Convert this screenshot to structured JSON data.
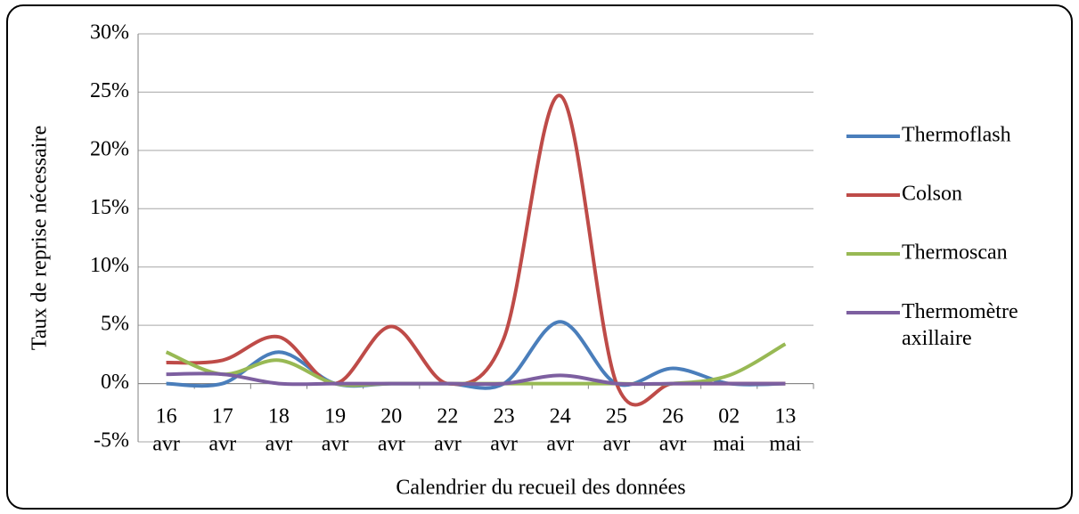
{
  "chart_data": {
    "type": "line",
    "x_label": "Calendrier du recueil des données",
    "y_label": "Taux de reprise nécessaire",
    "categories": [
      "16 avr",
      "17 avr",
      "18 avr",
      "19 avr",
      "20 avr",
      "22 avr",
      "23 avr",
      "24 avr",
      "25 avr",
      "26 avr",
      "02 mai",
      "13 mai"
    ],
    "series": [
      {
        "name": "Thermoflash",
        "color": "#4a7ebb",
        "values": [
          0,
          0,
          2.7,
          0,
          0,
          0,
          0,
          5.3,
          0,
          1.3,
          0,
          0
        ]
      },
      {
        "name": "Colson",
        "color": "#be4b48",
        "values": [
          1.8,
          2.0,
          4.0,
          0,
          4.9,
          0,
          3.9,
          24.7,
          0,
          0,
          0,
          0
        ]
      },
      {
        "name": "Thermoscan",
        "color": "#98b954",
        "values": [
          2.7,
          0.8,
          2.0,
          0,
          0,
          0,
          0,
          0,
          0,
          0,
          0.7,
          3.4
        ]
      },
      {
        "name": "Thermomètre axillaire",
        "color": "#7d5fa0",
        "values": [
          0.8,
          0.8,
          0,
          0,
          0,
          0,
          0,
          0.7,
          0,
          0,
          0,
          0
        ]
      }
    ],
    "ylim": [
      -5,
      30
    ],
    "yticks": [
      {
        "value": -5,
        "label": "-5%"
      },
      {
        "value": 0,
        "label": "0%"
      },
      {
        "value": 5,
        "label": "5%"
      },
      {
        "value": 10,
        "label": "10%"
      },
      {
        "value": 15,
        "label": "15%"
      },
      {
        "value": 20,
        "label": "20%"
      },
      {
        "value": 25,
        "label": "25%"
      },
      {
        "value": 30,
        "label": "30%"
      }
    ],
    "grid": true,
    "smooth": true,
    "legend": "right"
  }
}
